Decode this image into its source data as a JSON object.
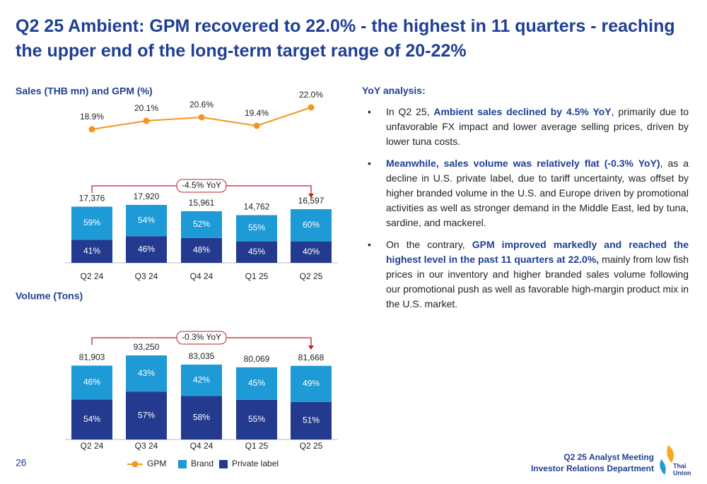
{
  "title": "Q2 25 Ambient: GPM recovered to 22.0% - the highest in 11 quarters - reaching the upper end of the long-term target range of 20-22%",
  "chart_data": [
    {
      "type": "line",
      "title": "Sales (THB mn) and GPM (%)",
      "series": [
        {
          "name": "GPM",
          "color": "#f7941d",
          "values": [
            18.9,
            20.1,
            20.6,
            19.4,
            22.0
          ],
          "value_labels": [
            "18.9%",
            "20.1%",
            "20.6%",
            "19.4%",
            "22.0%"
          ]
        }
      ]
    },
    {
      "type": "bar",
      "categories": [
        "Q2 24",
        "Q3 24",
        "Q4 24",
        "Q1 25",
        "Q2 25"
      ],
      "values": [
        17376,
        17920,
        15961,
        14762,
        16597
      ],
      "value_labels": [
        "17,376",
        "17,920",
        "15,961",
        "14,762",
        "16,597"
      ],
      "annotation": "-4.5% YoY",
      "series": [
        {
          "name": "Private label",
          "color": "#233a8f",
          "values": [
            41,
            46,
            48,
            45,
            40
          ],
          "value_labels": [
            "41%",
            "46%",
            "48%",
            "45%",
            "40%"
          ]
        },
        {
          "name": "Brand",
          "color": "#1e9ad6",
          "values": [
            59,
            54,
            52,
            55,
            60
          ],
          "value_labels": [
            "59%",
            "54%",
            "52%",
            "55%",
            "60%"
          ]
        }
      ]
    },
    {
      "type": "bar",
      "title": "Volume (Tons)",
      "categories": [
        "Q2 24",
        "Q3 24",
        "Q4 24",
        "Q1 25",
        "Q2 25"
      ],
      "values": [
        81903,
        93250,
        83035,
        80069,
        81668
      ],
      "value_labels": [
        "81,903",
        "93,250",
        "83,035",
        "80,069",
        "81,668"
      ],
      "annotation": "-0.3% YoY",
      "series": [
        {
          "color": "#233a8f",
          "values": [
            54,
            57,
            58,
            55,
            51
          ],
          "value_labels": [
            "54%",
            "57%",
            "58%",
            "55%",
            "51%"
          ]
        },
        {
          "color": "#1e9ad6",
          "values": [
            46,
            43,
            42,
            45,
            49
          ],
          "value_labels": [
            "46%",
            "43%",
            "42%",
            "45%",
            "49%"
          ]
        }
      ]
    }
  ],
  "analysis": {
    "heading": "YoY analysis:",
    "bullets": [
      [
        {
          "text": "In Q2 25, "
        },
        {
          "text": "Ambient sales declined by 4.5% YoY",
          "bold": true
        },
        {
          "text": ", primarily due to unfavorable FX impact and lower average selling prices, driven by lower tuna costs."
        }
      ],
      [
        {
          "text": "Meanwhile, sales volume was relatively flat (-0.3% YoY)",
          "bold": true
        },
        {
          "text": ", as a decline in U.S. private label, due to tariff uncertainty, was offset by higher branded volume in the U.S. and Europe driven by promotional activities as well as stronger demand in the Middle East, led by tuna, sardine, and mackerel."
        }
      ],
      [
        {
          "text": "On the contrary, "
        },
        {
          "text": "GPM improved markedly and reached the highest level in the past 11 quarters at 22.0%,",
          "bold": true
        },
        {
          "text": " mainly from low fish prices in our inventory and higher branded sales volume following our promotional push as well as favorable high-margin product mix in the U.S. market."
        }
      ]
    ]
  },
  "footer": {
    "page": "26",
    "event": "Q2 25 Analyst Meeting",
    "department": "Investor Relations Department",
    "logo": [
      "Thai",
      "Union"
    ]
  }
}
